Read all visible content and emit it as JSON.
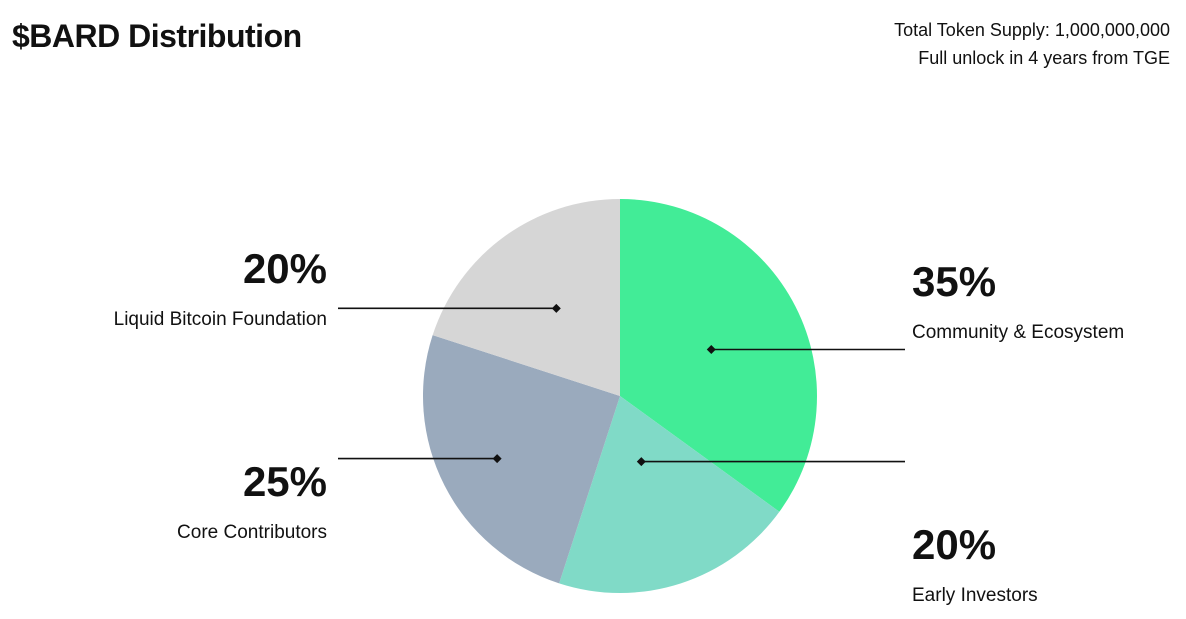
{
  "header": {
    "title": "$BARD Distribution",
    "supply_line": "Total Token Supply: 1,000,000,000",
    "unlock_line": "Full unlock in 4 years from TGE"
  },
  "chart_data": {
    "type": "pie",
    "slices": [
      {
        "label": "Community & Ecosystem",
        "value": 35,
        "display": "35%",
        "color": "#42ec97"
      },
      {
        "label": "Early Investors",
        "value": 20,
        "display": "20%",
        "color": "#80dac7"
      },
      {
        "label": "Core Contributors",
        "value": 25,
        "display": "25%",
        "color": "#9aaabd"
      },
      {
        "label": "Liquid Bitcoin Foundation",
        "value": 20,
        "display": "20%",
        "color": "#d6d6d6"
      }
    ]
  }
}
